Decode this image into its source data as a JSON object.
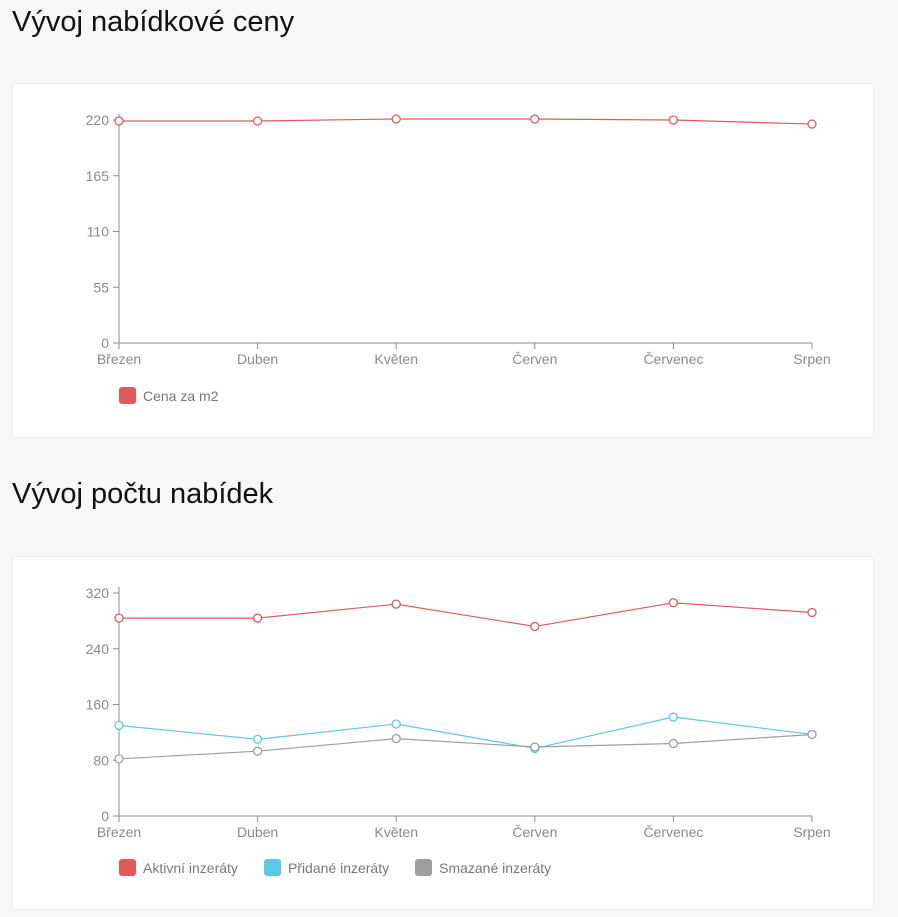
{
  "colors": {
    "red": "#e05a5a",
    "blue": "#5bc8e6",
    "gray": "#9e9e9e"
  },
  "chart_data": [
    {
      "type": "line",
      "title": "Vývoj nabídkové ceny",
      "categories": [
        "Březen",
        "Duben",
        "Květen",
        "Červen",
        "Červenec",
        "Srpen"
      ],
      "yticks": [
        0,
        55,
        110,
        165,
        220
      ],
      "ylim": [
        0,
        220
      ],
      "legend_position": "bottom-left",
      "series": [
        {
          "name": "Cena za m2",
          "color": "#e05a5a",
          "values": [
            219,
            219,
            221,
            221,
            220,
            216
          ]
        }
      ]
    },
    {
      "type": "line",
      "title": "Vývoj počtu nabídek",
      "categories": [
        "Březen",
        "Duben",
        "Květen",
        "Červen",
        "Červenec",
        "Srpen"
      ],
      "yticks": [
        0,
        80,
        160,
        240,
        320
      ],
      "ylim": [
        0,
        320
      ],
      "legend_position": "bottom-left",
      "series": [
        {
          "name": "Aktivní inzeráty",
          "color": "#e05a5a",
          "values": [
            284,
            284,
            304,
            272,
            306,
            292
          ]
        },
        {
          "name": "Přidané inzeráty",
          "color": "#5bc8e6",
          "values": [
            130,
            110,
            132,
            97,
            142,
            117
          ]
        },
        {
          "name": "Smazané inzeráty",
          "color": "#9e9e9e",
          "values": [
            82,
            93,
            111,
            99,
            104,
            117
          ]
        }
      ]
    }
  ]
}
